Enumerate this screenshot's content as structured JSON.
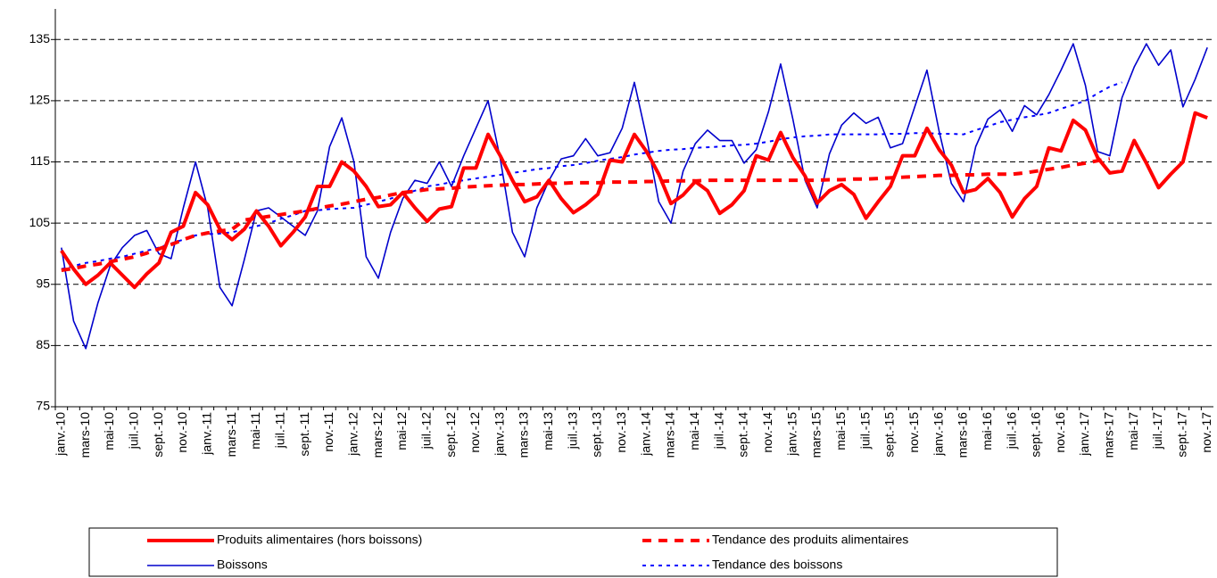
{
  "chart_data": {
    "type": "line",
    "categories": [
      "janv.-10",
      null,
      "mars-10",
      null,
      "mai-10",
      null,
      "juil.-10",
      null,
      "sept.-10",
      null,
      "nov.-10",
      null,
      "janv.-11",
      null,
      "mars-11",
      null,
      "mai-11",
      null,
      "juil.-11",
      null,
      "sept.-11",
      null,
      "nov.-11",
      null,
      "janv.-12",
      null,
      "mars-12",
      null,
      "mai-12",
      null,
      "juil.-12",
      null,
      "sept.-12",
      null,
      "nov.-12",
      null,
      "janv.-13",
      null,
      "mars-13",
      null,
      "mai-13",
      null,
      "juil.-13",
      null,
      "sept.-13",
      null,
      "nov.-13",
      null,
      "janv.-14",
      null,
      "mars-14",
      null,
      "mai-14",
      null,
      "juil.-14",
      null,
      "sept.-14",
      null,
      "nov.-14",
      null,
      "janv.-15",
      null,
      "mars-15",
      null,
      "mai-15",
      null,
      "juil.-15",
      null,
      "sept.-15",
      null,
      "nov.-15",
      null,
      "janv.-16",
      null,
      "mars-16",
      null,
      "mai-16",
      null,
      "juil.-16",
      null,
      "sept.-16",
      null,
      "nov.-16",
      null,
      "janv.-17",
      null,
      "mars-17",
      null,
      "mai-17",
      null,
      "juil.-17",
      null,
      "sept.-17",
      null,
      "nov.-17"
    ],
    "series": [
      {
        "name": "Produits alimentaires (hors boissons)",
        "color": "#ff0000",
        "style": "thick",
        "values": [
          100.5,
          97.5,
          95,
          96.5,
          98.5,
          96.5,
          94.5,
          96.7,
          98.5,
          103.5,
          104.5,
          110,
          108,
          104,
          102.3,
          104,
          107,
          104.5,
          101.3,
          103.5,
          106,
          111,
          111,
          115,
          113.5,
          111,
          107.7,
          108,
          110,
          107.5,
          105.3,
          107.3,
          107.7,
          114,
          114,
          119.5,
          116,
          112,
          108.5,
          109.3,
          112,
          109,
          106.7,
          108,
          109.7,
          115.3,
          115,
          119.5,
          116.7,
          113,
          108.2,
          109.6,
          111.8,
          110.3,
          106.6,
          108,
          110.3,
          116,
          115.3,
          119.8,
          115.7,
          112.7,
          108.3,
          110.3,
          111.3,
          109.7,
          105.8,
          108.5,
          111,
          116,
          116,
          120.5,
          117,
          114.5,
          110,
          110.5,
          112.3,
          110,
          106,
          109,
          111,
          117.3,
          116.8,
          121.8,
          120.2,
          115.7,
          113.2,
          113.5,
          118.5,
          114.8,
          110.8,
          113,
          115,
          123,
          122.2
        ]
      },
      {
        "name": "Boissons",
        "color": "#0000cc",
        "style": "thin",
        "values": [
          101,
          89,
          84.5,
          92,
          98,
          101,
          103,
          103.8,
          100,
          99.2,
          107.5,
          115,
          107.5,
          94.5,
          91.5,
          99,
          107,
          107.5,
          106,
          104.5,
          103,
          107,
          117.5,
          122.2,
          115,
          99.5,
          96,
          103.5,
          109,
          112,
          111.5,
          115,
          111,
          116,
          120.5,
          125,
          115.5,
          103.5,
          99.5,
          107.5,
          112,
          115.5,
          116,
          118.8,
          116,
          116.5,
          120.5,
          128,
          119,
          108.5,
          105,
          113.5,
          118,
          120.2,
          118.5,
          118.5,
          114.8,
          117,
          123.2,
          131,
          122,
          112,
          107.5,
          116.3,
          121,
          123,
          121.3,
          122.3,
          117.3,
          118,
          124,
          130,
          120,
          111.5,
          108.5,
          117.5,
          122,
          123.5,
          120,
          124.2,
          122.7,
          126,
          130,
          134.3,
          127.5,
          116.7,
          116,
          125.5,
          130.5,
          134.3,
          130.8,
          133.3,
          124,
          128.5,
          133.7
        ]
      },
      {
        "name": "Tendance des produits alimentaires",
        "color": "#ff0000",
        "style": "dashed",
        "values": [
          97.3,
          97.6,
          98,
          98.3,
          98.7,
          99.1,
          99.5,
          100.1,
          100.8,
          101.5,
          102.3,
          103,
          103.4,
          103.7,
          104,
          105.5,
          105.8,
          106.1,
          106.4,
          106.7,
          107,
          107.4,
          107.8,
          108.1,
          108.5,
          108.9,
          109.2,
          109.6,
          110,
          110.2,
          110.5,
          110.6,
          110.7,
          110.9,
          111,
          111.1,
          111.2,
          111.3,
          111.3,
          111.4,
          111.5,
          111.5,
          111.6,
          111.6,
          111.6,
          111.7,
          111.7,
          111.7,
          111.8,
          111.8,
          111.9,
          111.9,
          111.9,
          112,
          112,
          112,
          112,
          112,
          112,
          112,
          112,
          112,
          112,
          112.1,
          112.1,
          112.2,
          112.2,
          112.3,
          112.4,
          112.5,
          112.6,
          112.7,
          112.8,
          112.8,
          112.9,
          112.9,
          113,
          113,
          113,
          113.2,
          113.5,
          113.8,
          114.1,
          114.5,
          114.8,
          115.2,
          115.5,
          null,
          null,
          null,
          null,
          null,
          null,
          null,
          null
        ]
      },
      {
        "name": "Tendance des boissons",
        "color": "#0000ff",
        "style": "dotted",
        "values": [
          97.5,
          98,
          98.5,
          98.8,
          99.2,
          99.5,
          100,
          100.5,
          101,
          101.7,
          102.3,
          103,
          103.2,
          103.3,
          103.5,
          104,
          104.5,
          105,
          105.7,
          106.3,
          107,
          107.1,
          107.3,
          107.4,
          107.5,
          108,
          108.5,
          109,
          109.7,
          110.3,
          111,
          111.3,
          111.7,
          112,
          112.3,
          112.6,
          112.9,
          113.2,
          113.5,
          113.8,
          114,
          114.3,
          114.5,
          114.8,
          115.2,
          115.5,
          115.8,
          116.2,
          116.5,
          116.8,
          117,
          117.1,
          117.3,
          117.4,
          117.5,
          117.7,
          117.8,
          118,
          118.3,
          118.7,
          119,
          119.2,
          119.3,
          119.5,
          119.5,
          119.5,
          119.5,
          119.5,
          119.6,
          119.6,
          119.7,
          119.7,
          119.6,
          119.6,
          119.5,
          120.2,
          120.8,
          121.5,
          121.9,
          122.3,
          122.6,
          123,
          123.7,
          124.3,
          125,
          126.2,
          127.3,
          128,
          null,
          null,
          null,
          null,
          null,
          null,
          null
        ]
      }
    ],
    "ylim": [
      75,
      140
    ],
    "yticks": [
      75,
      85,
      95,
      105,
      115,
      125,
      135
    ],
    "grid": true
  }
}
